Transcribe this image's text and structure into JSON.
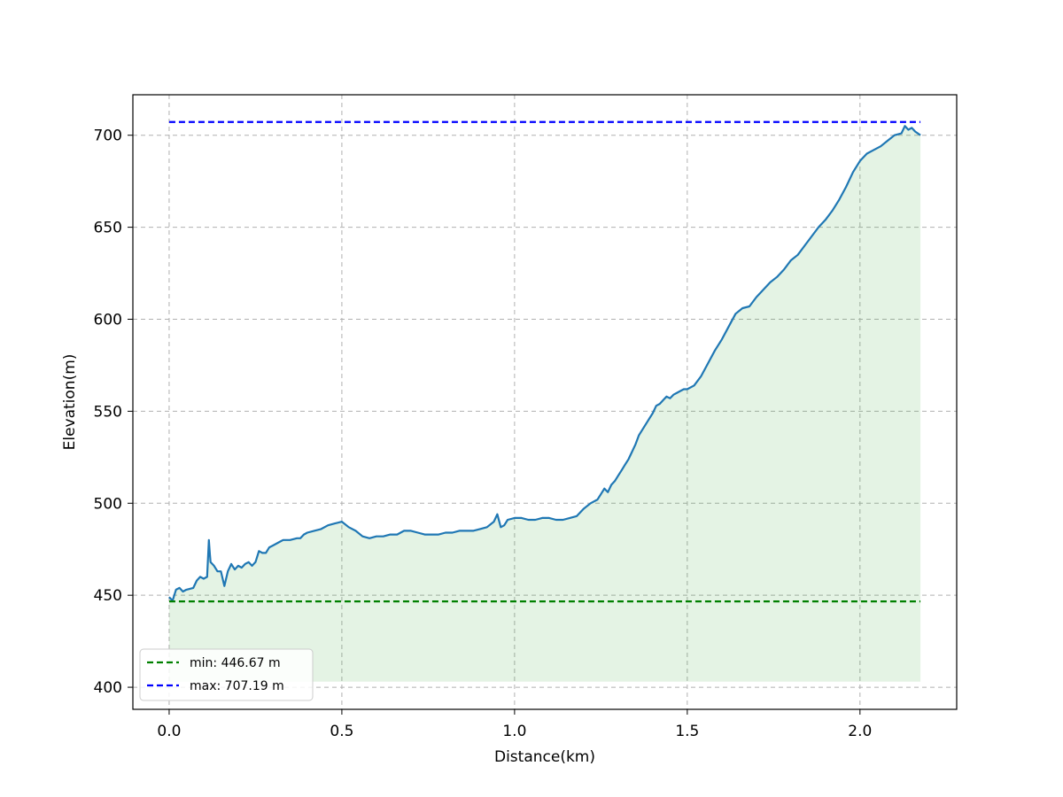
{
  "chart_data": {
    "type": "area",
    "xlabel": "Distance(km)",
    "ylabel": "Elevation(m)",
    "xlim": [
      -0.105,
      2.28
    ],
    "ylim": [
      388,
      722
    ],
    "xticks": [
      0.0,
      0.5,
      1.0,
      1.5,
      2.0
    ],
    "xtick_labels": [
      "0.0",
      "0.5",
      "1.0",
      "1.5",
      "2.0"
    ],
    "yticks": [
      400,
      450,
      500,
      550,
      600,
      650,
      700
    ],
    "ytick_labels": [
      "400",
      "450",
      "500",
      "550",
      "600",
      "650",
      "700"
    ],
    "grid": true,
    "legend_position": "lower-left",
    "fill_baseline": 403,
    "colors": {
      "line": "#1f77b4",
      "fill": "#2ca02c",
      "min_line": "#008000",
      "max_line": "#0000ff",
      "grid": "#b0b0b0"
    },
    "reference_lines": [
      {
        "name": "min",
        "value": 446.67,
        "label": "min: 446.67 m",
        "color": "#008000"
      },
      {
        "name": "max",
        "value": 707.19,
        "label": "max: 707.19 m",
        "color": "#0000ff"
      }
    ],
    "series": [
      {
        "x": [
          0.0,
          0.01,
          0.02,
          0.03,
          0.04,
          0.05,
          0.07,
          0.08,
          0.09,
          0.1,
          0.11,
          0.115,
          0.118,
          0.12,
          0.13,
          0.14,
          0.15,
          0.16,
          0.17,
          0.18,
          0.19,
          0.2,
          0.21,
          0.22,
          0.23,
          0.24,
          0.25,
          0.26,
          0.27,
          0.28,
          0.29,
          0.3,
          0.31,
          0.32,
          0.33,
          0.35,
          0.37,
          0.38,
          0.39,
          0.4,
          0.42,
          0.44,
          0.46,
          0.48,
          0.5,
          0.52,
          0.54,
          0.56,
          0.58,
          0.6,
          0.62,
          0.64,
          0.66,
          0.68,
          0.7,
          0.72,
          0.74,
          0.76,
          0.78,
          0.8,
          0.82,
          0.84,
          0.86,
          0.88,
          0.9,
          0.92,
          0.94,
          0.95,
          0.96,
          0.97,
          0.98,
          1.0,
          1.02,
          1.04,
          1.06,
          1.08,
          1.1,
          1.12,
          1.14,
          1.16,
          1.18,
          1.2,
          1.22,
          1.24,
          1.25,
          1.26,
          1.27,
          1.28,
          1.29,
          1.3,
          1.31,
          1.32,
          1.33,
          1.34,
          1.35,
          1.36,
          1.37,
          1.38,
          1.39,
          1.4,
          1.41,
          1.42,
          1.43,
          1.44,
          1.45,
          1.46,
          1.47,
          1.48,
          1.49,
          1.5,
          1.52,
          1.54,
          1.56,
          1.58,
          1.6,
          1.62,
          1.64,
          1.66,
          1.68,
          1.7,
          1.72,
          1.74,
          1.76,
          1.78,
          1.8,
          1.82,
          1.84,
          1.86,
          1.88,
          1.9,
          1.92,
          1.94,
          1.96,
          1.98,
          2.0,
          2.02,
          2.04,
          2.06,
          2.08,
          2.1,
          2.12,
          2.13,
          2.14,
          2.15,
          2.16,
          2.175
        ],
        "y": [
          449,
          447,
          453,
          454,
          452,
          453,
          454,
          458,
          460,
          459,
          460,
          480,
          472,
          468,
          466,
          463,
          463,
          455,
          463,
          467,
          464,
          466,
          465,
          467,
          468,
          466,
          468,
          474,
          473,
          473,
          476,
          477,
          478,
          479,
          480,
          480,
          481,
          481,
          483,
          484,
          485,
          486,
          488,
          489,
          490,
          487,
          485,
          482,
          481,
          482,
          482,
          483,
          483,
          485,
          485,
          484,
          483,
          483,
          483,
          484,
          484,
          485,
          485,
          485,
          486,
          487,
          490,
          494,
          487,
          488,
          491,
          492,
          492,
          491,
          491,
          492,
          492,
          491,
          491,
          492,
          493,
          497,
          500,
          502,
          505,
          508,
          506,
          510,
          512,
          515,
          518,
          521,
          524,
          528,
          532,
          537,
          540,
          543,
          546,
          549,
          553,
          554,
          556,
          558,
          557,
          559,
          560,
          561,
          562,
          562,
          564,
          569,
          576,
          583,
          589,
          596,
          603,
          606,
          607,
          612,
          616,
          620,
          623,
          627,
          632,
          635,
          640,
          645,
          650,
          654,
          659,
          665,
          672,
          680,
          686,
          690,
          692,
          694,
          697,
          700,
          701,
          705,
          703,
          704,
          702,
          700
        ]
      }
    ]
  }
}
